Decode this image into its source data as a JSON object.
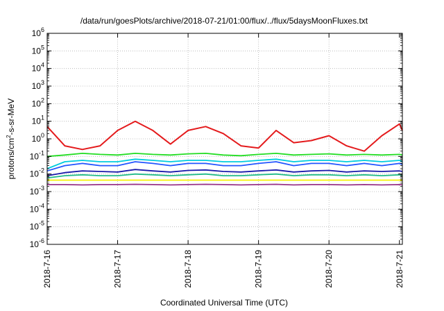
{
  "chart_data": {
    "type": "line",
    "title": "/data/run/goesPlots/archive/2018-07-21/01:00/flux/../flux/5daysMoonFluxes.txt",
    "xlabel": "Coordinated Universal Time (UTC)",
    "ylabel_parts": {
      "main": "protons/cm",
      "sup": "2",
      "rest": "-s-sr-MeV"
    },
    "y_scale": "log",
    "ylim": [
      1e-06,
      1000000.0
    ],
    "y_ticks": [
      {
        "base": "10",
        "exp": "-6",
        "value": 1e-06
      },
      {
        "base": "10",
        "exp": "-5",
        "value": 1e-05
      },
      {
        "base": "10",
        "exp": "-4",
        "value": 0.0001
      },
      {
        "base": "10",
        "exp": "-3",
        "value": 0.001
      },
      {
        "base": "10",
        "exp": "-2",
        "value": 0.01
      },
      {
        "base": "10",
        "exp": "-1",
        "value": 0.1
      },
      {
        "base": "10",
        "exp": "0",
        "value": 1
      },
      {
        "base": "10",
        "exp": "1",
        "value": 10
      },
      {
        "base": "10",
        "exp": "2",
        "value": 100
      },
      {
        "base": "10",
        "exp": "3",
        "value": 1000
      },
      {
        "base": "10",
        "exp": "4",
        "value": 10000
      },
      {
        "base": "10",
        "exp": "5",
        "value": 100000
      },
      {
        "base": "10",
        "exp": "6",
        "value": 1000000
      }
    ],
    "xlim": [
      "2018-07-16 00:00",
      "2018-07-21 01:00"
    ],
    "x_ticks": [
      {
        "label": "2018-7-16",
        "date": "2018-07-16"
      },
      {
        "label": "2018-7-17",
        "date": "2018-07-17"
      },
      {
        "label": "2018-7-18",
        "date": "2018-07-18"
      },
      {
        "label": "2018-7-19",
        "date": "2018-07-19"
      },
      {
        "label": "2018-7-20",
        "date": "2018-07-20"
      },
      {
        "label": "2018-7-21",
        "date": "2018-07-21"
      }
    ],
    "grid": true,
    "legend": "none",
    "x": [
      "2018-07-16 00:00",
      "2018-07-16 06:00",
      "2018-07-16 12:00",
      "2018-07-16 18:00",
      "2018-07-17 00:00",
      "2018-07-17 06:00",
      "2018-07-17 12:00",
      "2018-07-17 18:00",
      "2018-07-18 00:00",
      "2018-07-18 06:00",
      "2018-07-18 12:00",
      "2018-07-18 18:00",
      "2018-07-19 00:00",
      "2018-07-19 06:00",
      "2018-07-19 12:00",
      "2018-07-19 18:00",
      "2018-07-20 00:00",
      "2018-07-20 06:00",
      "2018-07-20 12:00",
      "2018-07-20 18:00",
      "2018-07-21 00:00",
      "2018-07-21 01:00"
    ],
    "series": [
      {
        "color": "#e41a1c",
        "values": [
          5,
          0.4,
          0.25,
          0.4,
          3,
          10,
          3,
          0.5,
          3,
          5,
          2,
          0.4,
          0.3,
          3,
          0.6,
          0.8,
          1.5,
          0.4,
          0.2,
          1.5,
          7,
          3
        ]
      },
      {
        "color": "#22dd22",
        "values": [
          0.1,
          0.12,
          0.15,
          0.13,
          0.12,
          0.15,
          0.13,
          0.12,
          0.14,
          0.15,
          0.12,
          0.11,
          0.13,
          0.15,
          0.12,
          0.13,
          0.14,
          0.12,
          0.13,
          0.12,
          0.13,
          0.12
        ]
      },
      {
        "color": "#00ccdd",
        "values": [
          0.02,
          0.05,
          0.06,
          0.05,
          0.05,
          0.07,
          0.06,
          0.05,
          0.06,
          0.06,
          0.05,
          0.05,
          0.06,
          0.07,
          0.05,
          0.06,
          0.06,
          0.05,
          0.06,
          0.05,
          0.06,
          0.05
        ]
      },
      {
        "color": "#2255ff",
        "values": [
          0.015,
          0.03,
          0.04,
          0.03,
          0.03,
          0.05,
          0.04,
          0.03,
          0.04,
          0.04,
          0.03,
          0.03,
          0.04,
          0.05,
          0.03,
          0.04,
          0.04,
          0.03,
          0.04,
          0.03,
          0.04,
          0.035
        ]
      },
      {
        "color": "#1a1aaa",
        "values": [
          0.008,
          0.012,
          0.015,
          0.014,
          0.013,
          0.018,
          0.015,
          0.013,
          0.016,
          0.017,
          0.014,
          0.013,
          0.015,
          0.017,
          0.013,
          0.015,
          0.016,
          0.013,
          0.015,
          0.014,
          0.015,
          0.014
        ]
      },
      {
        "color": "#22bb88",
        "values": [
          0.006,
          0.008,
          0.009,
          0.008,
          0.008,
          0.01,
          0.009,
          0.008,
          0.009,
          0.01,
          0.008,
          0.008,
          0.009,
          0.01,
          0.008,
          0.009,
          0.009,
          0.008,
          0.009,
          0.008,
          0.009,
          0.008
        ]
      },
      {
        "color": "#f5f000",
        "values": [
          0.0045,
          0.0045,
          0.0045,
          0.0045,
          0.0045,
          0.0045,
          0.0045,
          0.0045,
          0.0045,
          0.0045,
          0.0045,
          0.0045,
          0.0045,
          0.0045,
          0.0045,
          0.0045,
          0.0045,
          0.0045,
          0.0045,
          0.0045,
          0.0045,
          0.0045
        ]
      },
      {
        "color": "#993388",
        "values": [
          0.0025,
          0.0025,
          0.0024,
          0.0025,
          0.0025,
          0.0026,
          0.0025,
          0.0024,
          0.0025,
          0.0026,
          0.0025,
          0.0024,
          0.0025,
          0.0026,
          0.0024,
          0.0025,
          0.0025,
          0.0024,
          0.0025,
          0.0024,
          0.0025,
          0.0024
        ]
      }
    ]
  }
}
